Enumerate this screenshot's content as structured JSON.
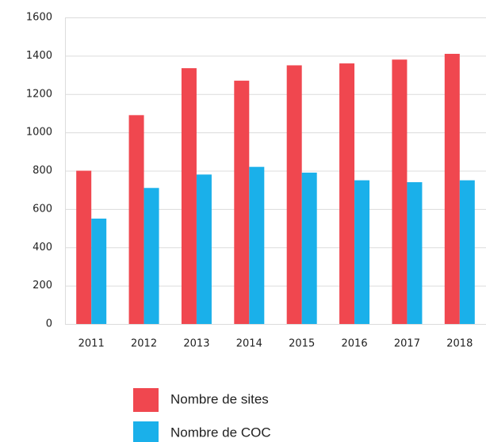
{
  "chart_data": {
    "type": "bar",
    "categories": [
      "2011",
      "2012",
      "2013",
      "2014",
      "2015",
      "2016",
      "2017",
      "2018"
    ],
    "series": [
      {
        "name": "Nombre de sites",
        "color": "#f0474f",
        "values": [
          800,
          1090,
          1335,
          1270,
          1350,
          1360,
          1380,
          1410
        ]
      },
      {
        "name": "Nombre de COC",
        "color": "#1ab0ea",
        "values": [
          550,
          710,
          780,
          820,
          790,
          750,
          740,
          750
        ]
      }
    ],
    "ylim": [
      0,
      1600
    ],
    "yticks": [
      0,
      200,
      400,
      600,
      800,
      1000,
      1200,
      1400,
      1600
    ],
    "grid": true
  }
}
